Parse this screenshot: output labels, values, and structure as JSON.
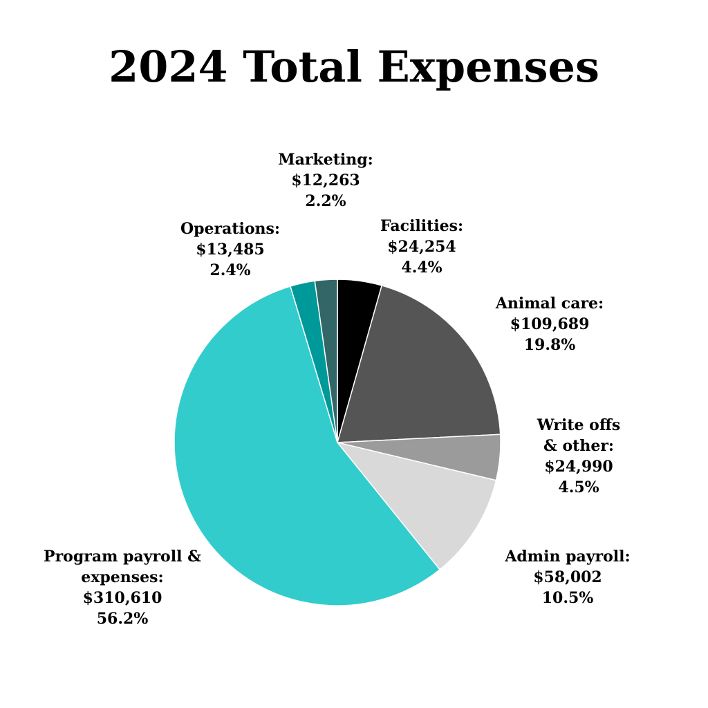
{
  "chart_data": {
    "type": "pie",
    "title": "2024 Total Expenses",
    "slices": [
      {
        "label": "Facilities:",
        "amount": "$24,254",
        "percent_label": "4.4%",
        "value": 24254,
        "percent": 4.4,
        "color": "#000000"
      },
      {
        "label": "Animal care:",
        "amount": "$109,689",
        "percent_label": "19.8%",
        "value": 109689,
        "percent": 19.8,
        "color": "#555555"
      },
      {
        "label": "Write offs & other:",
        "amount": "$24,990",
        "percent_label": "4.5%",
        "value": 24990,
        "percent": 4.5,
        "color": "#9b9b9b"
      },
      {
        "label": "Admin payroll:",
        "amount": "$58,002",
        "percent_label": "10.5%",
        "value": 58002,
        "percent": 10.5,
        "color": "#d9d9d9"
      },
      {
        "label": "Program payroll & expenses:",
        "amount": "$310,610",
        "percent_label": "56.2%",
        "value": 310610,
        "percent": 56.2,
        "color": "#33cccc"
      },
      {
        "label": "Operations:",
        "amount": "$13,485",
        "percent_label": "2.4%",
        "value": 13485,
        "percent": 2.4,
        "color": "#009999"
      },
      {
        "label": "Marketing:",
        "amount": "$12,263",
        "percent_label": "2.2%",
        "value": 12263,
        "percent": 2.2,
        "color": "#336666"
      }
    ],
    "legend": "none",
    "start_angle": "12 o'clock",
    "direction": "clockwise"
  }
}
